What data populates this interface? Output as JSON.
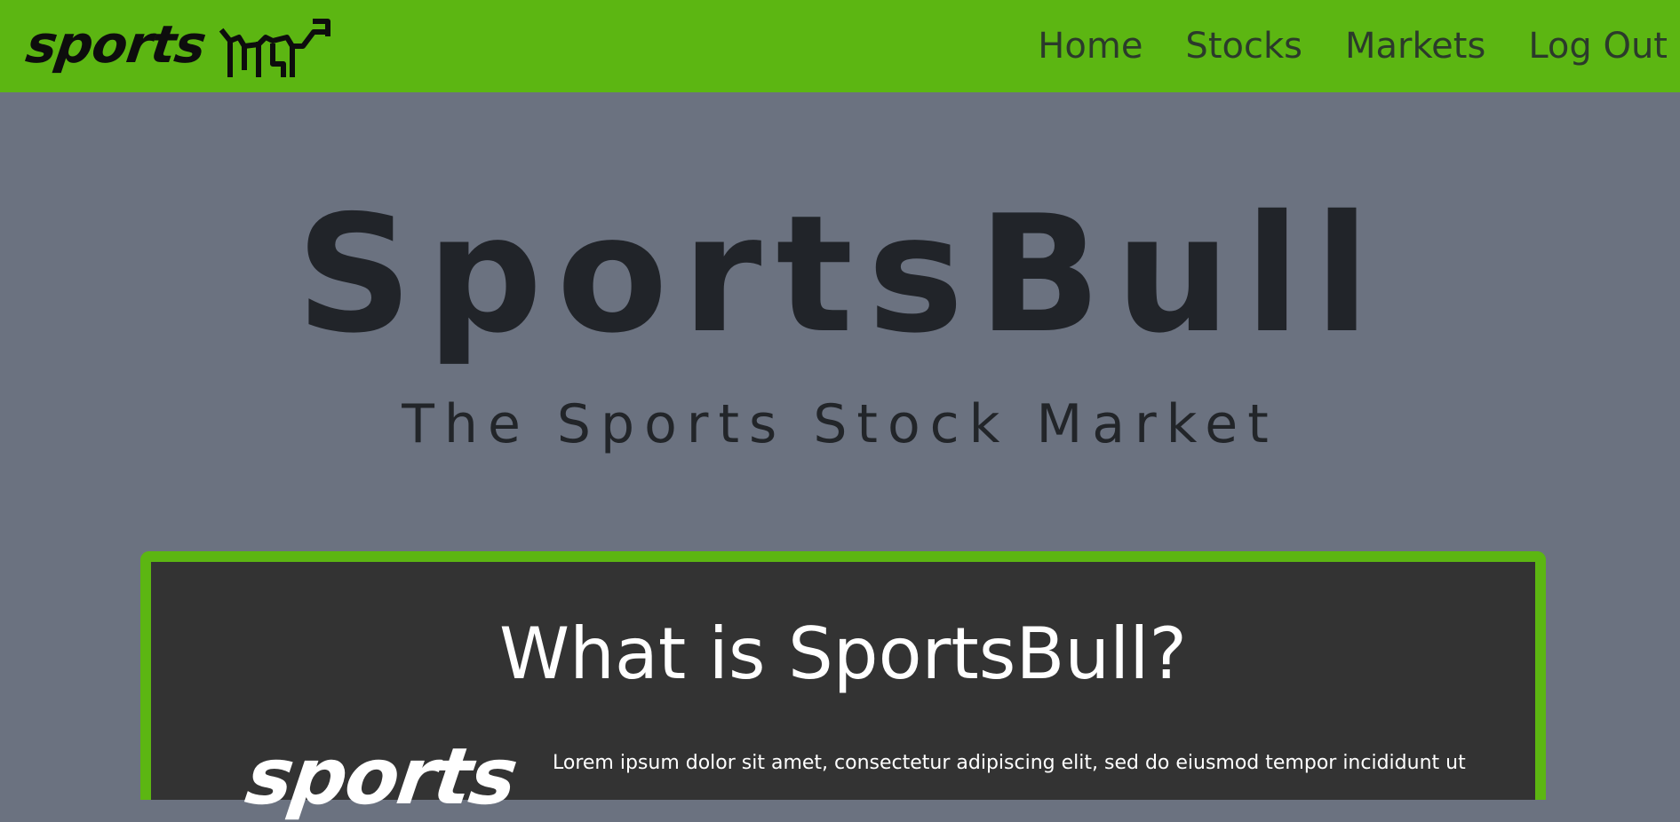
{
  "navbar": {
    "brand_text": "sports",
    "brand_icon": "bull-icon",
    "links": [
      {
        "label": "Home"
      },
      {
        "label": "Stocks"
      },
      {
        "label": "Markets"
      },
      {
        "label": "Log Out"
      }
    ]
  },
  "hero": {
    "title": "SportsBull",
    "subtitle": "The Sports Stock Market"
  },
  "about": {
    "heading": "What is SportsBull?",
    "logo_text": "sports",
    "body": "Lorem ipsum dolor sit amet, consectetur adipiscing elit, sed do eiusmod tempor incididunt ut"
  },
  "colors": {
    "accent": "#5cb612",
    "page_bg": "#6b7280",
    "card_bg": "#333333",
    "dark_text": "#212429"
  }
}
